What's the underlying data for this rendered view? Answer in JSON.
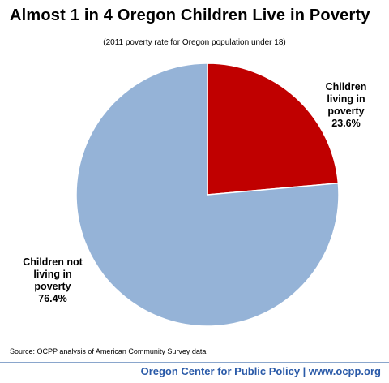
{
  "chart_data": {
    "type": "pie",
    "title": "Almost 1 in 4 Oregon Children Live in Poverty",
    "subtitle": "(2011 poverty rate for Oregon population under 18)",
    "slices": [
      {
        "label": "Children living in poverty",
        "value": 23.6,
        "display": "Children\nliving in\npoverty\n23.6%",
        "color": "#c00000"
      },
      {
        "label": "Children not living in poverty",
        "value": 76.4,
        "display": "Children not\nliving in\npoverty\n76.4%",
        "color": "#95b3d7"
      }
    ]
  },
  "source": "Source: OCPP analysis of American Community Survey data",
  "footer": "Oregon Center for Public Policy | www.ocpp.org"
}
